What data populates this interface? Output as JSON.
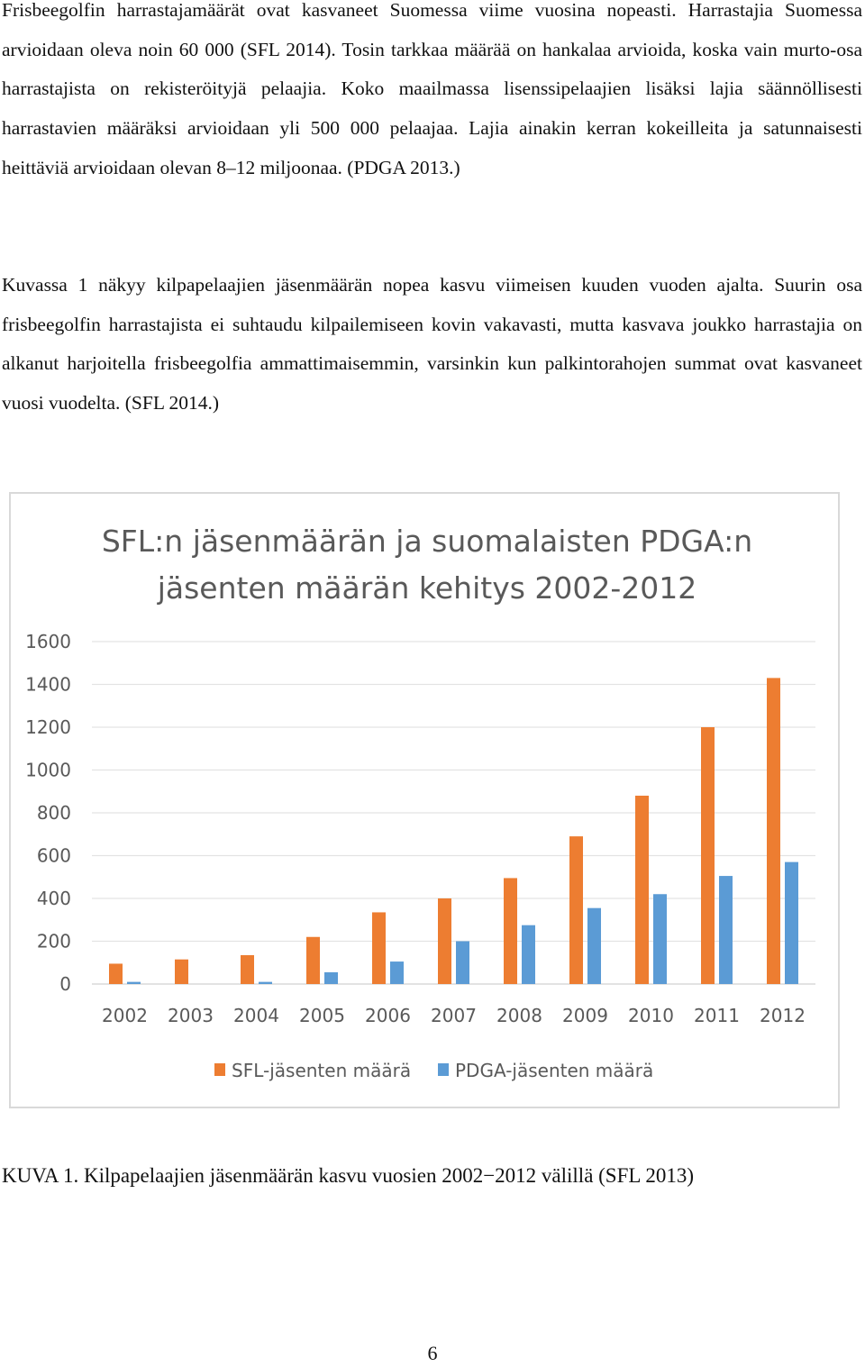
{
  "body": {
    "paragraph1": "Frisbeegolfin harrastajamäärät ovat kasvaneet Suomessa viime vuosina nopeasti. Harrastajia Suomessa arvioidaan oleva noin 60 000 (SFL 2014). Tosin tarkkaa määrää on hankalaa arvioida, koska vain murto-osa harrastajista on rekisteröityjä pelaajia. Koko maailmassa lisenssipelaajien lisäksi lajia säännöllisesti harrastavien määräksi arvioidaan yli 500 000 pelaajaa. Lajia ainakin kerran kokeilleita ja satunnaisesti heittäviä arvioidaan olevan 8–12 miljoonaa. (PDGA 2013.)",
    "paragraph2": "Kuvassa 1 näkyy kilpapelaajien jäsenmäärän nopea kasvu viimeisen kuuden vuoden ajalta. Suurin osa frisbeegolfin harrastajista ei suhtaudu kilpailemiseen kovin vakavasti, mutta kasvava joukko harrastajia on alkanut harjoitella frisbeegolfia ammattimaisemmin, varsinkin kun palkintorahojen summat ovat kasvaneet vuosi vuodelta. (SFL 2014.)"
  },
  "figure": {
    "caption": "KUVA 1. Kilpapelaajien jäsenmäärän kasvu vuosien 2002−2012 välillä (SFL 2013)"
  },
  "page_number": "6",
  "chart_data": {
    "type": "bar",
    "title_line1": "SFL:n jäsenmäärän ja suomalaisten PDGA:n",
    "title_line2": "jäsenten määrän kehitys 2002-2012",
    "categories": [
      "2002",
      "2003",
      "2004",
      "2005",
      "2006",
      "2007",
      "2008",
      "2009",
      "2010",
      "2011",
      "2012"
    ],
    "series": [
      {
        "name": "SFL-jäsenten määrä",
        "color": "#ed7d31",
        "values": [
          95,
          115,
          135,
          220,
          335,
          400,
          495,
          690,
          880,
          1200,
          1430
        ]
      },
      {
        "name": "PDGA-jäsenten määrä",
        "color": "#5b9bd5",
        "values": [
          10,
          0,
          10,
          55,
          105,
          200,
          275,
          355,
          420,
          505,
          570
        ]
      }
    ],
    "yticks": [
      "0",
      "200",
      "400",
      "600",
      "800",
      "1000",
      "1200",
      "1400",
      "1600"
    ],
    "ylim": [
      0,
      1600
    ],
    "grid": true,
    "legend_position": "bottom"
  }
}
